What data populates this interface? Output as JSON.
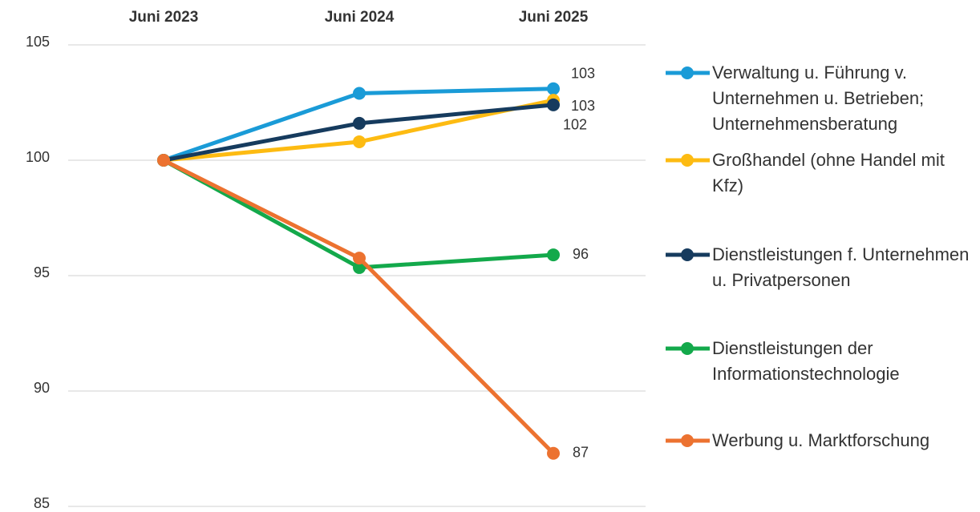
{
  "chart_data": {
    "type": "line",
    "categories": [
      "Juni 2023",
      "Juni 2024",
      "Juni 2025"
    ],
    "ylim": [
      85,
      105
    ],
    "yticks": [
      85,
      90,
      95,
      100,
      105
    ],
    "grid": true,
    "legend": "right",
    "series": [
      {
        "name": "Verwaltung u. Führung v. Unternehmen u. Betrieben; Unternehmensberatung",
        "color": "#1a9bd7",
        "values": [
          100,
          102.9,
          103.1
        ],
        "value_labels": [
          null,
          null,
          "103"
        ]
      },
      {
        "name": "Großhandel (ohne Handel mit Kfz)",
        "color": "#fdbb12",
        "values": [
          100,
          100.8,
          102.6
        ],
        "value_labels": [
          null,
          null,
          "103"
        ]
      },
      {
        "name": "Dienstleistungen f. Unternehmen u. Privatpersonen",
        "color": "#163b5e",
        "values": [
          100,
          101.6,
          102.4
        ],
        "value_labels": [
          null,
          null,
          "102"
        ]
      },
      {
        "name": "Dienstleistungen der Informationstechnologie",
        "color": "#13a94b",
        "values": [
          100,
          95.35,
          95.9
        ],
        "value_labels": [
          null,
          null,
          "96"
        ]
      },
      {
        "name": "Werbung u. Marktforschung",
        "color": "#ec7230",
        "values": [
          100,
          95.76,
          87.3
        ],
        "value_labels": [
          null,
          null,
          "87"
        ]
      }
    ]
  }
}
